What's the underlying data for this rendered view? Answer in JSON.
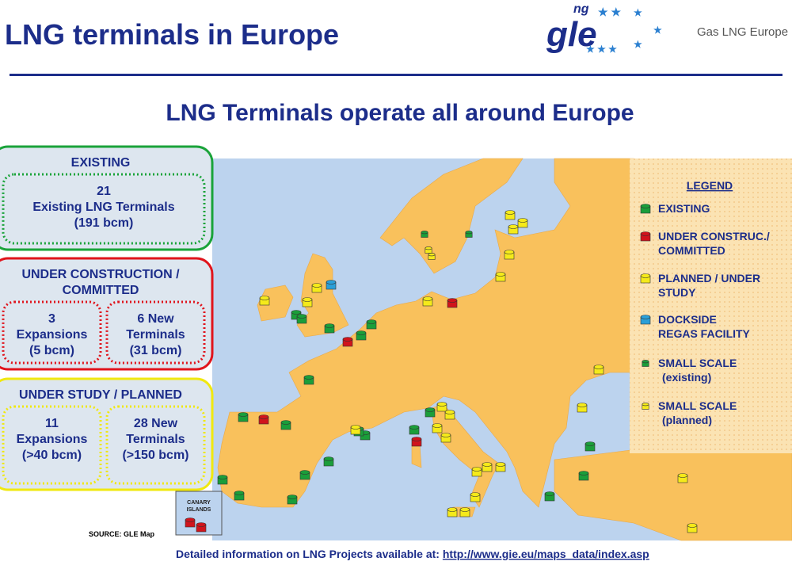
{
  "header": {
    "title": "LNG terminals in Europe",
    "logo": "gle",
    "logo_sup": "ng",
    "logo_text": "Gas LNG Europe"
  },
  "subtitle": "LNG Terminals operate all around Europe",
  "boxes": [
    {
      "heading": [
        "EXISTING"
      ],
      "parts": [
        [
          "21",
          "Existing LNG Terminals",
          "(191 bcm)"
        ]
      ]
    },
    {
      "heading": [
        "UNDER CONSTRUCTION /",
        "COMMITTED"
      ],
      "parts": [
        [
          "3",
          "Expansions",
          "(5 bcm)"
        ],
        [
          "6 New",
          "Terminals",
          "(31 bcm)"
        ]
      ]
    },
    {
      "heading": [
        "UNDER STUDY / PLANNED"
      ],
      "parts": [
        [
          "11",
          "Expansions",
          "(>40 bcm)"
        ],
        [
          "28 New",
          "Terminals",
          "(>150 bcm)"
        ]
      ]
    }
  ],
  "legend": {
    "title": "LEGEND",
    "items": [
      [
        "EXISTING"
      ],
      [
        "UNDER CONSTRUC./",
        "COMMITTED"
      ],
      [
        "PLANNED / UNDER",
        "STUDY"
      ],
      [
        "DOCKSIDE",
        "REGAS FACILITY"
      ],
      [
        "SMALL SCALE",
        "(existing)"
      ],
      [
        "SMALL SCALE",
        "(planned)"
      ]
    ]
  },
  "inset": [
    "CANARY",
    "ISLANDS"
  ],
  "source": "SOURCE: GLE Map",
  "footer": {
    "text": "Detailed information on LNG Projects available at: ",
    "link": "http://www.gie.eu/maps_data/index.asp"
  }
}
